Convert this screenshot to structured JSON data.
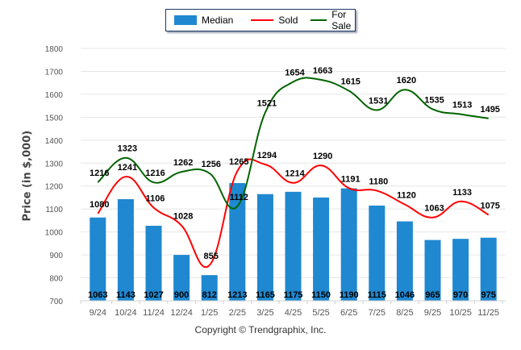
{
  "chart_data": {
    "type": "bar+line",
    "title": "",
    "xlabel": "",
    "ylabel": "Price (in $,000)",
    "ylim": [
      700,
      1800
    ],
    "yticks": [
      700,
      800,
      900,
      1000,
      1100,
      1200,
      1300,
      1400,
      1500,
      1600,
      1700,
      1800
    ],
    "grid": true,
    "legend_position": "top-center",
    "categories": [
      "9/24",
      "10/24",
      "11/24",
      "12/24",
      "1/25",
      "2/25",
      "3/25",
      "4/25",
      "5/25",
      "6/25",
      "7/25",
      "8/25",
      "9/25",
      "10/25",
      "11/25"
    ],
    "series": [
      {
        "name": "Median",
        "type": "bar",
        "color": "#1f88d0",
        "values": [
          1063,
          1143,
          1027,
          900,
          812,
          1213,
          1165,
          1175,
          1150,
          1190,
          1115,
          1046,
          965,
          970,
          975
        ]
      },
      {
        "name": "Sold",
        "type": "line",
        "color": "#ff0000",
        "values": [
          1080,
          1241,
          1106,
          1028,
          855,
          1265,
          1294,
          1214,
          1290,
          1191,
          1180,
          1120,
          1063,
          1133,
          1075
        ]
      },
      {
        "name": "For Sale",
        "type": "line",
        "color": "#006400",
        "values": [
          1216,
          1323,
          1216,
          1262,
          1256,
          1112,
          1521,
          1654,
          1663,
          1615,
          1531,
          1620,
          1535,
          1513,
          1495
        ]
      }
    ]
  },
  "legend": {
    "median": "Median",
    "sold": "Sold",
    "for_sale": "For Sale"
  },
  "footer": {
    "copyright": "Copyright © Trendgraphix, Inc."
  }
}
